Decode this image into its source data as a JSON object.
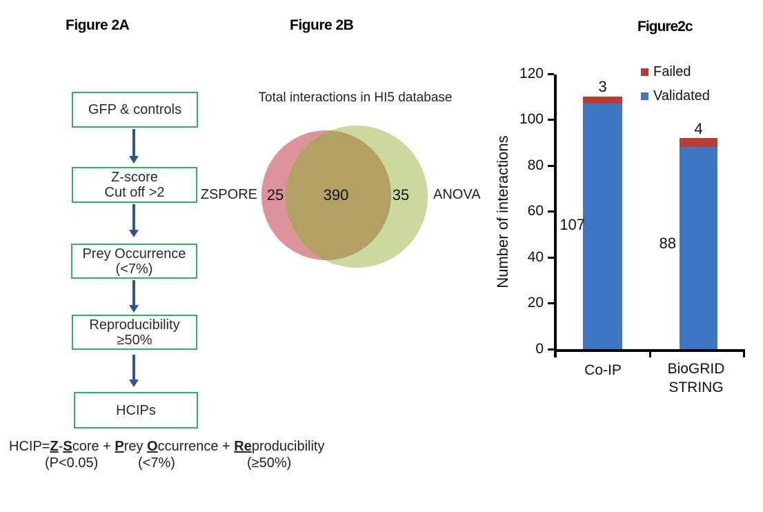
{
  "panelA": {
    "title": "Figure 2A",
    "box_border_color": "#2bb45a",
    "arrow_color": "#2f5391",
    "boxes": {
      "b1": {
        "l1": "GFP & controls"
      },
      "b2": {
        "l1": "Z-score",
        "l2": "Cut off >2"
      },
      "b3": {
        "l1": "Prey Occurrence",
        "l2": "(<7%)"
      },
      "b4": {
        "l1": "Reproducibility",
        "l2": "≥50%"
      },
      "b5": {
        "l1": "HCIPs"
      }
    },
    "formula": {
      "p0": "HCIP=",
      "p1": "Z",
      "p2": "-",
      "p3": "S",
      "p4": "core + ",
      "p5": "P",
      "p6": "rey ",
      "p7": "O",
      "p8": "ccurrence + ",
      "p9": "Re",
      "p10": "producibility",
      "sub1": "(P<0.05)",
      "sub2": "(<7%)",
      "sub3": "(≥50%)"
    }
  },
  "panelB": {
    "title": "Figure 2B",
    "venn_title": "Total interactions in HI5 database",
    "left_label": "ZSPORE",
    "right_label": "ANOVA",
    "left_value": "25",
    "overlap_value": "390",
    "right_value": "35",
    "left_color": "#dc939a",
    "right_color": "#cbd99f",
    "overlap_color": "#b1a165"
  },
  "panelC": {
    "title": "Figure2c"
  },
  "chart_data": {
    "type": "bar",
    "stacked": true,
    "categories": [
      "Co-IP",
      "BioGRID STRING"
    ],
    "category_lines": [
      [
        "Co-IP"
      ],
      [
        "BioGRID",
        "STRING"
      ]
    ],
    "series": [
      {
        "name": "Validated",
        "color": "#3d76c2",
        "values": [
          107,
          88
        ]
      },
      {
        "name": "Failed",
        "color": "#bc3c33",
        "values": [
          3,
          4
        ]
      }
    ],
    "failed_labels": [
      "3",
      "4"
    ],
    "validated_labels": [
      "107",
      "88"
    ],
    "ylabel": "Number of interactions",
    "ylim": [
      0,
      120
    ],
    "yticks": [
      0,
      20,
      40,
      60,
      80,
      100,
      120
    ],
    "legend_position": "top-right",
    "grid": false
  }
}
